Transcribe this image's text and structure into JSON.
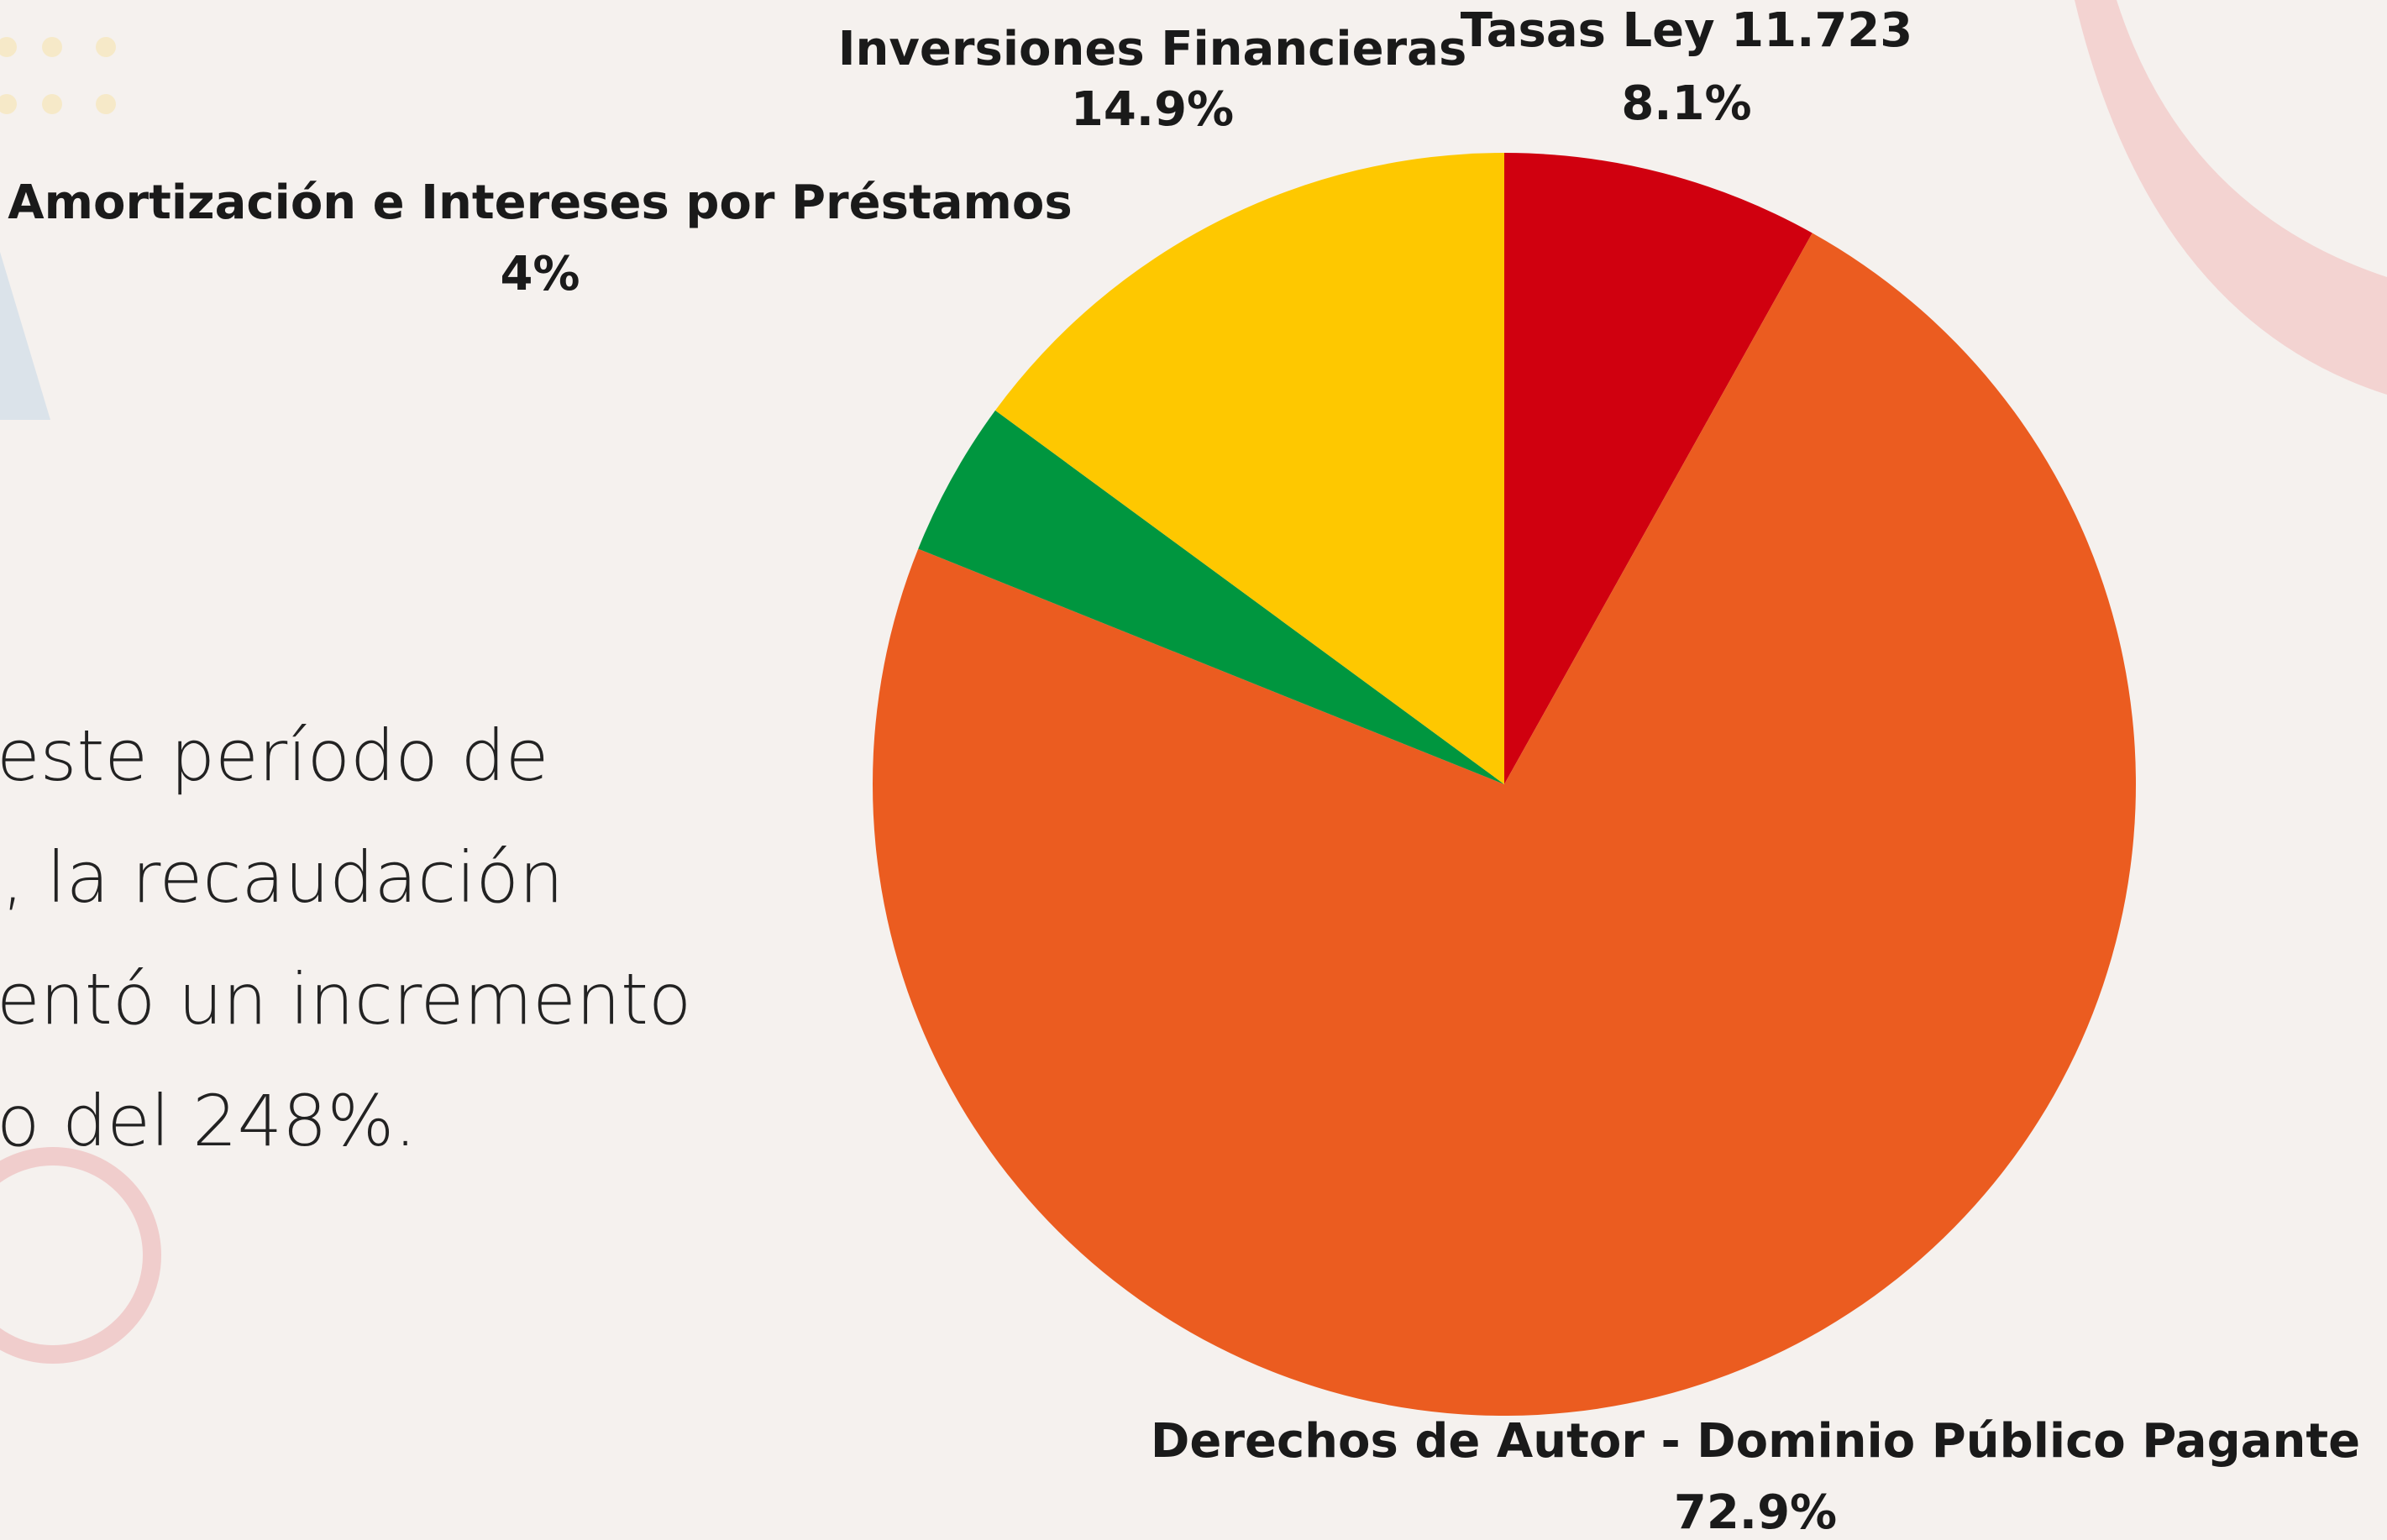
{
  "chart_data": {
    "type": "pie",
    "categories": [
      "Tasas Ley 11.723",
      "Derechos de Autor - Dominio Público Pagante",
      "Amortización e Intereses por Préstamos",
      "Inversiones Financieras"
    ],
    "values": [
      8.1,
      72.9,
      4,
      14.9
    ],
    "value_labels": [
      "8.1%",
      "72.9%",
      "4%",
      "14.9%"
    ],
    "colors": [
      "#d0000f",
      "#eb5c20",
      "#00963f",
      "#fec800"
    ]
  },
  "body_text": [
    "este período de",
    ", la recaudación",
    "entó un incremento",
    "o del 248%."
  ]
}
